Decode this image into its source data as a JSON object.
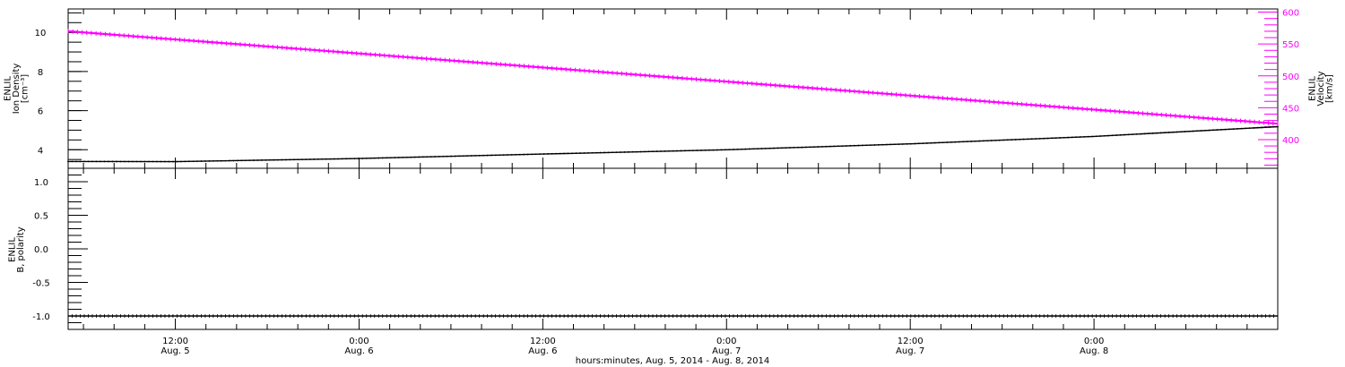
{
  "chart_data": [
    {
      "type": "line",
      "panel": "top",
      "left_ylabel_lines": [
        "ENLIL",
        "Ion Density",
        "[cm⁻³]"
      ],
      "right_ylabel_lines": [
        "ENLIL",
        "Velocity",
        "[km/s]"
      ],
      "ylim_left": [
        3.05,
        11.2
      ],
      "ylim_right": [
        355,
        605
      ],
      "yticks_left": [
        "4",
        "6",
        "8",
        "10"
      ],
      "yticks_right": [
        "400",
        "450",
        "500",
        "550",
        "600"
      ],
      "grid": false,
      "series": [
        {
          "axis": "left",
          "color": "#000000",
          "x": [
            "2014-08-05 05:00",
            "2014-08-05 12:00",
            "2014-08-06 00:00",
            "2014-08-06 12:00",
            "2014-08-07 00:00",
            "2014-08-07 12:00",
            "2014-08-08 00:00",
            "2014-08-08 12:00"
          ],
          "values": [
            3.4,
            3.39,
            3.55,
            3.78,
            4.0,
            4.3,
            4.68,
            5.18
          ]
        },
        {
          "axis": "right",
          "color": "#ff00ff",
          "x": [
            "2014-08-05 05:00",
            "2014-08-08 12:00"
          ],
          "values": [
            570,
            425
          ]
        }
      ]
    },
    {
      "type": "line",
      "panel": "bottom",
      "ylabel_lines": [
        "ENLIL",
        "B, polarity"
      ],
      "ylim": [
        -1.2,
        1.2
      ],
      "yticks": [
        "-1.0",
        "-0.5",
        "0.0",
        "0.5",
        "1.0"
      ],
      "grid": false,
      "series": [
        {
          "color": "#000000",
          "x": [
            "2014-08-05 05:00",
            "2014-08-08 12:00"
          ],
          "values": [
            -1.0,
            -1.0
          ]
        }
      ]
    }
  ],
  "xaxis": {
    "range": [
      "2014-08-05 05:00",
      "2014-08-08 12:00"
    ],
    "ticks": [
      {
        "x": "2014-08-05 12:00",
        "time": "12:00",
        "date": "Aug. 5"
      },
      {
        "x": "2014-08-06 00:00",
        "time": "0:00",
        "date": "Aug. 6"
      },
      {
        "x": "2014-08-06 12:00",
        "time": "12:00",
        "date": "Aug. 6"
      },
      {
        "x": "2014-08-07 00:00",
        "time": "0:00",
        "date": "Aug. 7"
      },
      {
        "x": "2014-08-07 12:00",
        "time": "12:00",
        "date": "Aug. 7"
      },
      {
        "x": "2014-08-08 00:00",
        "time": "0:00",
        "date": "Aug. 8"
      }
    ],
    "xlabel": "hours:minutes, Aug.  5, 2014 - Aug.  8, 2014"
  },
  "colors": {
    "axis": "#000000",
    "density": "#000000",
    "velocity": "#ff00ff"
  }
}
